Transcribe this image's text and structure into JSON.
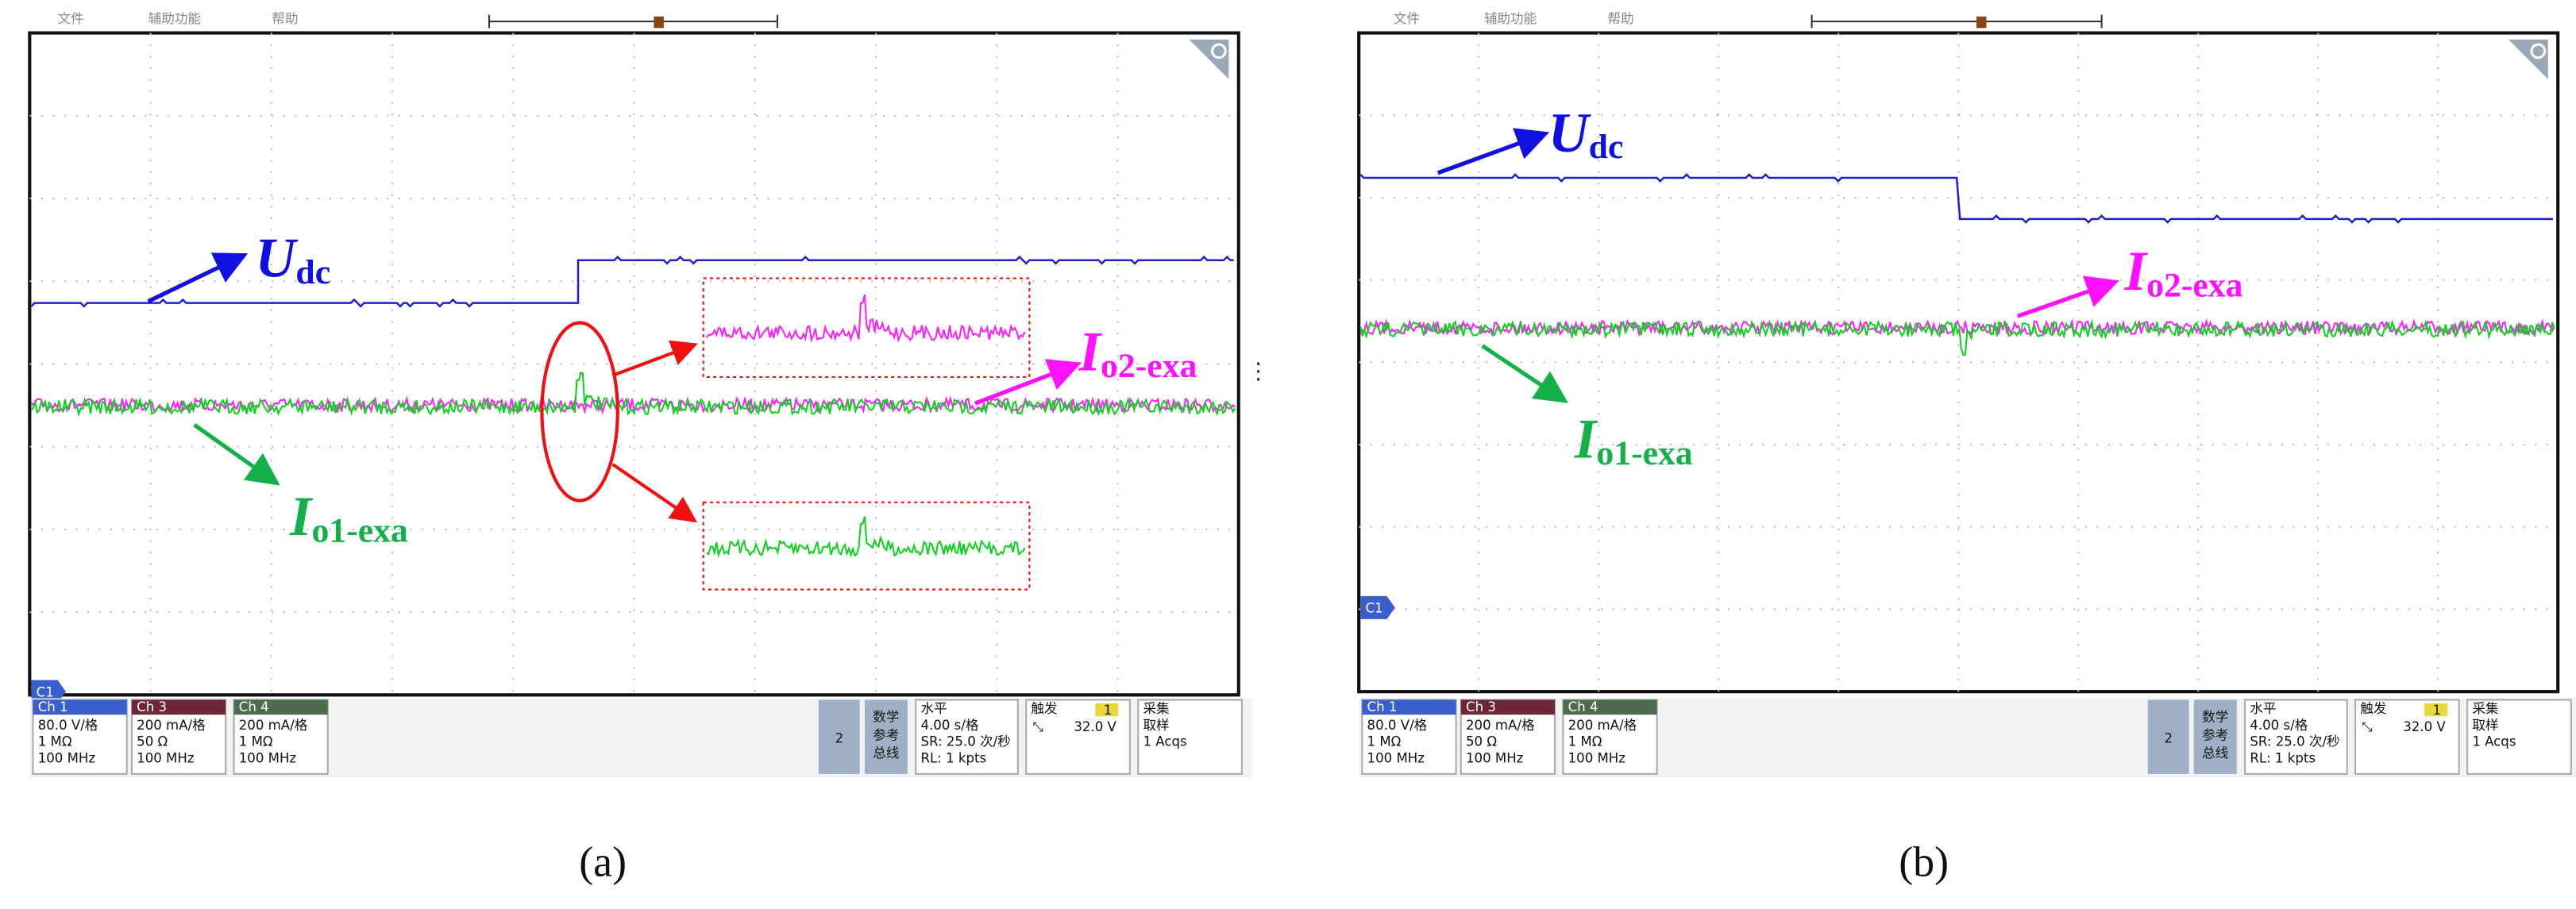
{
  "panels": [
    {
      "caption": "(a)",
      "menu": [
        "文件",
        "辅助功能",
        "帮助"
      ],
      "marker": "C1",
      "channels": [
        {
          "name": "Ch 1",
          "lines": [
            "80.0 V/格",
            "1 MΩ",
            "100 MHz"
          ]
        },
        {
          "name": "Ch 3",
          "lines": [
            "200 mA/格",
            "50 Ω",
            "100 MHz"
          ]
        },
        {
          "name": "Ch 4",
          "lines": [
            "200 mA/格",
            "1 MΩ",
            "100 MHz"
          ]
        }
      ],
      "button": "2",
      "math": [
        "数学",
        "参考",
        "总线"
      ],
      "horizontal": {
        "title": "水平",
        "lines": [
          "4.00 s/格",
          "SR: 25.0 次/秒",
          "RL: 1 kpts"
        ]
      },
      "trigger": {
        "title": "触发",
        "source": "1",
        "level": "32.0 V"
      },
      "acquire": {
        "title": "采集",
        "lines": [
          "取样",
          "1 Acqs"
        ]
      },
      "labels": {
        "udc": [
          "U",
          "dc"
        ],
        "io1": [
          "I",
          "o1-exa"
        ],
        "io2": [
          "I",
          "o2-exa"
        ]
      }
    },
    {
      "caption": "(b)",
      "menu": [
        "文件",
        "辅助功能",
        "帮助"
      ],
      "marker": "C1",
      "channels": [
        {
          "name": "Ch 1",
          "lines": [
            "80.0 V/格",
            "1 MΩ",
            "100 MHz"
          ]
        },
        {
          "name": "Ch 3",
          "lines": [
            "200 mA/格",
            "50 Ω",
            "100 MHz"
          ]
        },
        {
          "name": "Ch 4",
          "lines": [
            "200 mA/格",
            "1 MΩ",
            "100 MHz"
          ]
        }
      ],
      "button": "2",
      "math": [
        "数学",
        "参考",
        "总线"
      ],
      "horizontal": {
        "title": "水平",
        "lines": [
          "4.00 s/格",
          "SR: 25.0 次/秒",
          "RL: 1 kpts"
        ]
      },
      "trigger": {
        "title": "触发",
        "source": "1",
        "level": "32.0 V"
      },
      "acquire": {
        "title": "采集",
        "lines": [
          "取样",
          "1 Acqs"
        ]
      },
      "labels": {
        "udc": [
          "U",
          "dc"
        ],
        "io1": [
          "I",
          "o1-exa"
        ],
        "io2": [
          "I",
          "o2-exa"
        ]
      }
    }
  ]
}
